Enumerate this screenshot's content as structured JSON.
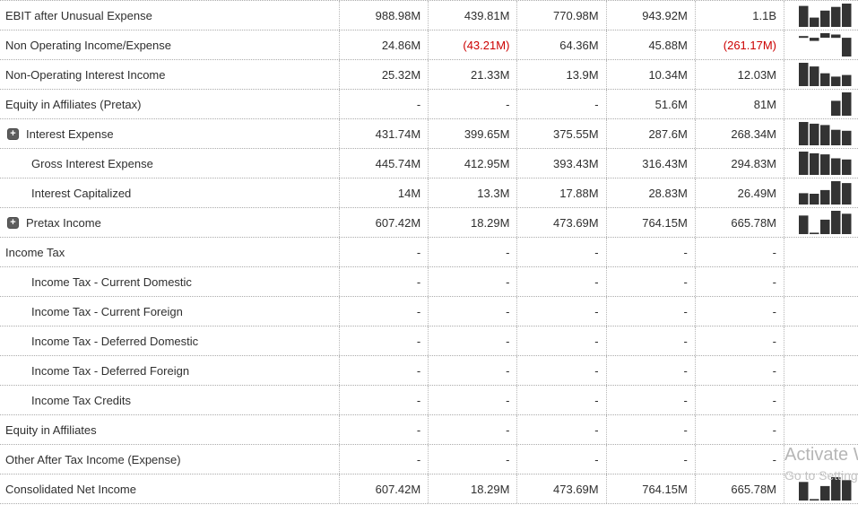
{
  "colors": {
    "bar": "#333333",
    "negative_value": "#cc0000",
    "text": "#2f2f2f",
    "grid_border": "#ababab"
  },
  "watermark": {
    "line1": "Activate Windows",
    "line2": "Go to Settings to activate Windows."
  },
  "table": {
    "columns": [
      "col-1",
      "col-2",
      "col-3",
      "col-4",
      "col-5",
      "trend"
    ],
    "dash": "-",
    "rows": [
      {
        "label": "EBIT after Unusual Expense",
        "indent": 0,
        "expandable": false,
        "values": [
          "988.98M",
          "439.81M",
          "770.98M",
          "943.92M",
          "1.1B"
        ],
        "spark": [
          988.98,
          439.81,
          770.98,
          943.92,
          1100
        ]
      },
      {
        "label": "Non Operating Income/Expense",
        "indent": 0,
        "expandable": false,
        "values": [
          "24.86M",
          "(43.21M)",
          "64.36M",
          "45.88M",
          "(261.17M)"
        ],
        "spark": [
          24.86,
          -43.21,
          64.36,
          45.88,
          -261.17
        ]
      },
      {
        "label": "Non-Operating Interest Income",
        "indent": 0,
        "expandable": false,
        "values": [
          "25.32M",
          "21.33M",
          "13.9M",
          "10.34M",
          "12.03M"
        ],
        "spark": [
          25.32,
          21.33,
          13.9,
          10.34,
          12.03
        ]
      },
      {
        "label": "Equity in Affiliates (Pretax)",
        "indent": 0,
        "expandable": false,
        "values": [
          "-",
          "-",
          "-",
          "51.6M",
          "81M"
        ],
        "spark": [
          null,
          null,
          null,
          51.6,
          81
        ]
      },
      {
        "label": "Interest Expense",
        "indent": 0,
        "expandable": true,
        "values": [
          "431.74M",
          "399.65M",
          "375.55M",
          "287.6M",
          "268.34M"
        ],
        "spark": [
          431.74,
          399.65,
          375.55,
          287.6,
          268.34
        ]
      },
      {
        "label": "Gross Interest Expense",
        "indent": 1,
        "expandable": false,
        "values": [
          "445.74M",
          "412.95M",
          "393.43M",
          "316.43M",
          "294.83M"
        ],
        "spark": [
          445.74,
          412.95,
          393.43,
          316.43,
          294.83
        ]
      },
      {
        "label": "Interest Capitalized",
        "indent": 1,
        "expandable": false,
        "values": [
          "14M",
          "13.3M",
          "17.88M",
          "28.83M",
          "26.49M"
        ],
        "spark": [
          14,
          13.3,
          17.88,
          28.83,
          26.49
        ]
      },
      {
        "label": "Pretax Income",
        "indent": 0,
        "expandable": true,
        "values": [
          "607.42M",
          "18.29M",
          "473.69M",
          "764.15M",
          "665.78M"
        ],
        "spark": [
          607.42,
          18.29,
          473.69,
          764.15,
          665.78
        ]
      },
      {
        "label": "Income Tax",
        "indent": 0,
        "expandable": false,
        "values": [
          "-",
          "-",
          "-",
          "-",
          "-"
        ],
        "spark": null
      },
      {
        "label": "Income Tax - Current Domestic",
        "indent": 1,
        "expandable": false,
        "values": [
          "-",
          "-",
          "-",
          "-",
          "-"
        ],
        "spark": null
      },
      {
        "label": "Income Tax - Current Foreign",
        "indent": 1,
        "expandable": false,
        "values": [
          "-",
          "-",
          "-",
          "-",
          "-"
        ],
        "spark": null
      },
      {
        "label": "Income Tax - Deferred Domestic",
        "indent": 1,
        "expandable": false,
        "values": [
          "-",
          "-",
          "-",
          "-",
          "-"
        ],
        "spark": null
      },
      {
        "label": "Income Tax - Deferred Foreign",
        "indent": 1,
        "expandable": false,
        "values": [
          "-",
          "-",
          "-",
          "-",
          "-"
        ],
        "spark": null
      },
      {
        "label": "Income Tax Credits",
        "indent": 1,
        "expandable": false,
        "values": [
          "-",
          "-",
          "-",
          "-",
          "-"
        ],
        "spark": null
      },
      {
        "label": "Equity in Affiliates",
        "indent": 0,
        "expandable": false,
        "values": [
          "-",
          "-",
          "-",
          "-",
          "-"
        ],
        "spark": null
      },
      {
        "label": "Other After Tax Income (Expense)",
        "indent": 0,
        "expandable": false,
        "values": [
          "-",
          "-",
          "-",
          "-",
          "-"
        ],
        "spark": null
      },
      {
        "label": "Consolidated Net Income",
        "indent": 0,
        "expandable": false,
        "values": [
          "607.42M",
          "18.29M",
          "473.69M",
          "764.15M",
          "665.78M"
        ],
        "spark": [
          607.42,
          18.29,
          473.69,
          764.15,
          665.78
        ]
      }
    ]
  }
}
